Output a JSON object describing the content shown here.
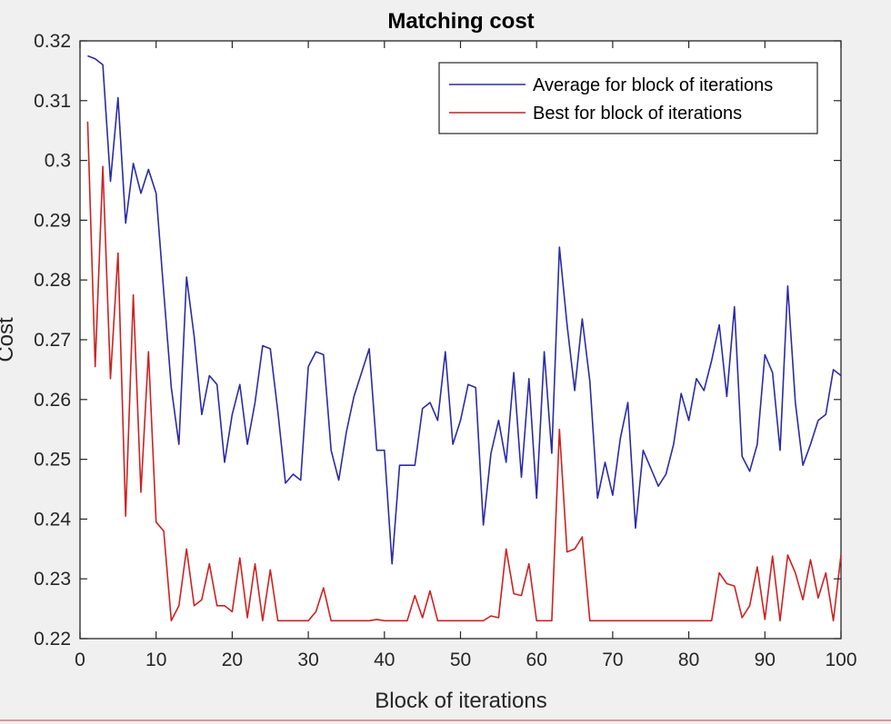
{
  "chart_data": {
    "type": "line",
    "title": "Matching cost",
    "xlabel": "Block of iterations",
    "ylabel": "Cost",
    "xlim": [
      0,
      100
    ],
    "ylim": [
      0.22,
      0.32
    ],
    "xticks": [
      0,
      10,
      20,
      30,
      40,
      50,
      60,
      70,
      80,
      90,
      100
    ],
    "yticks": [
      0.22,
      0.23,
      0.24,
      0.25,
      0.26,
      0.27,
      0.28,
      0.29,
      0.3,
      0.31,
      0.32
    ],
    "ytick_labels": [
      "0.22",
      "0.23",
      "0.24",
      "0.25",
      "0.26",
      "0.27",
      "0.28",
      "0.29",
      "0.3",
      "0.31",
      "0.32"
    ],
    "grid": false,
    "legend_position": "top-right",
    "x": [
      1,
      2,
      3,
      4,
      5,
      6,
      7,
      8,
      9,
      10,
      11,
      12,
      13,
      14,
      15,
      16,
      17,
      18,
      19,
      20,
      21,
      22,
      23,
      24,
      25,
      26,
      27,
      28,
      29,
      30,
      31,
      32,
      33,
      34,
      35,
      36,
      37,
      38,
      39,
      40,
      41,
      42,
      43,
      44,
      45,
      46,
      47,
      48,
      49,
      50,
      51,
      52,
      53,
      54,
      55,
      56,
      57,
      58,
      59,
      60,
      61,
      62,
      63,
      64,
      65,
      66,
      67,
      68,
      69,
      70,
      71,
      72,
      73,
      74,
      75,
      76,
      77,
      78,
      79,
      80,
      81,
      82,
      83,
      84,
      85,
      86,
      87,
      88,
      89,
      90,
      91,
      92,
      93,
      94,
      95,
      96,
      97,
      98,
      99,
      100
    ],
    "series": [
      {
        "name": "Average for block of iterations",
        "color": "#2b2ba6",
        "values": [
          0.3175,
          0.317,
          0.316,
          0.2965,
          0.3105,
          0.2895,
          0.2995,
          0.2945,
          0.2985,
          0.2945,
          0.278,
          0.262,
          0.2525,
          0.2805,
          0.2705,
          0.2575,
          0.264,
          0.2625,
          0.2495,
          0.2575,
          0.2625,
          0.2525,
          0.2595,
          0.269,
          0.2685,
          0.258,
          0.246,
          0.2475,
          0.2465,
          0.2655,
          0.268,
          0.2675,
          0.2515,
          0.2465,
          0.2545,
          0.2605,
          0.2645,
          0.2685,
          0.2515,
          0.2515,
          0.2325,
          0.249,
          0.249,
          0.249,
          0.2585,
          0.2595,
          0.2565,
          0.268,
          0.2525,
          0.2565,
          0.2625,
          0.262,
          0.239,
          0.251,
          0.2565,
          0.2495,
          0.2645,
          0.247,
          0.2635,
          0.2435,
          0.268,
          0.251,
          0.2855,
          0.2725,
          0.2615,
          0.2735,
          0.263,
          0.2435,
          0.2495,
          0.244,
          0.2535,
          0.2595,
          0.2385,
          0.2515,
          0.2485,
          0.2455,
          0.2475,
          0.2525,
          0.261,
          0.2565,
          0.2635,
          0.2615,
          0.2665,
          0.2725,
          0.2605,
          0.2755,
          0.2505,
          0.248,
          0.2525,
          0.2675,
          0.2645,
          0.2515,
          0.279,
          0.2595,
          0.249,
          0.2525,
          0.2565,
          0.2575,
          0.265,
          0.264
        ]
      },
      {
        "name": "Best for block of iterations",
        "color": "#cc2222",
        "values": [
          0.3065,
          0.2655,
          0.299,
          0.2635,
          0.2845,
          0.2405,
          0.2775,
          0.2445,
          0.268,
          0.2395,
          0.238,
          0.223,
          0.2255,
          0.235,
          0.2255,
          0.2265,
          0.2325,
          0.2255,
          0.2255,
          0.2245,
          0.2335,
          0.2235,
          0.2325,
          0.223,
          0.2315,
          0.223,
          0.223,
          0.223,
          0.223,
          0.223,
          0.2245,
          0.2285,
          0.223,
          0.223,
          0.223,
          0.223,
          0.223,
          0.223,
          0.2232,
          0.223,
          0.223,
          0.223,
          0.223,
          0.2272,
          0.2235,
          0.228,
          0.223,
          0.223,
          0.223,
          0.223,
          0.223,
          0.223,
          0.223,
          0.2238,
          0.2235,
          0.235,
          0.2275,
          0.2272,
          0.2325,
          0.223,
          0.223,
          0.223,
          0.255,
          0.2345,
          0.235,
          0.237,
          0.223,
          0.223,
          0.223,
          0.223,
          0.223,
          0.223,
          0.223,
          0.223,
          0.223,
          0.223,
          0.223,
          0.223,
          0.223,
          0.223,
          0.223,
          0.223,
          0.223,
          0.231,
          0.2292,
          0.2288,
          0.2235,
          0.2255,
          0.232,
          0.2232,
          0.2338,
          0.223,
          0.234,
          0.231,
          0.2265,
          0.2332,
          0.2268,
          0.231,
          0.223,
          0.234
        ]
      }
    ]
  }
}
